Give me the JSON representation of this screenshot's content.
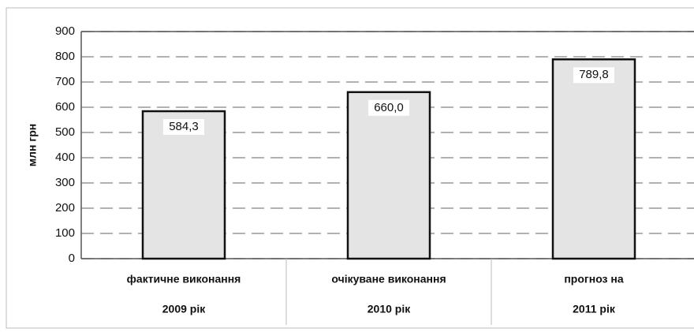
{
  "chart_data": {
    "type": "bar",
    "y_label": "млн грн",
    "categories": [
      [
        "фактичне виконання",
        "2009 рік"
      ],
      [
        "очікуване виконання",
        "2010 рік"
      ],
      [
        "прогноз на",
        "2011 рік"
      ]
    ],
    "values": [
      584.3,
      660.0,
      789.8
    ],
    "value_labels": [
      "584,3",
      "660,0",
      "789,8"
    ],
    "color": "#e4e4e4",
    "ylim": [
      0,
      900
    ],
    "yticks": [
      0,
      100,
      200,
      300,
      400,
      500,
      600,
      700,
      800,
      900
    ],
    "grid": true
  }
}
